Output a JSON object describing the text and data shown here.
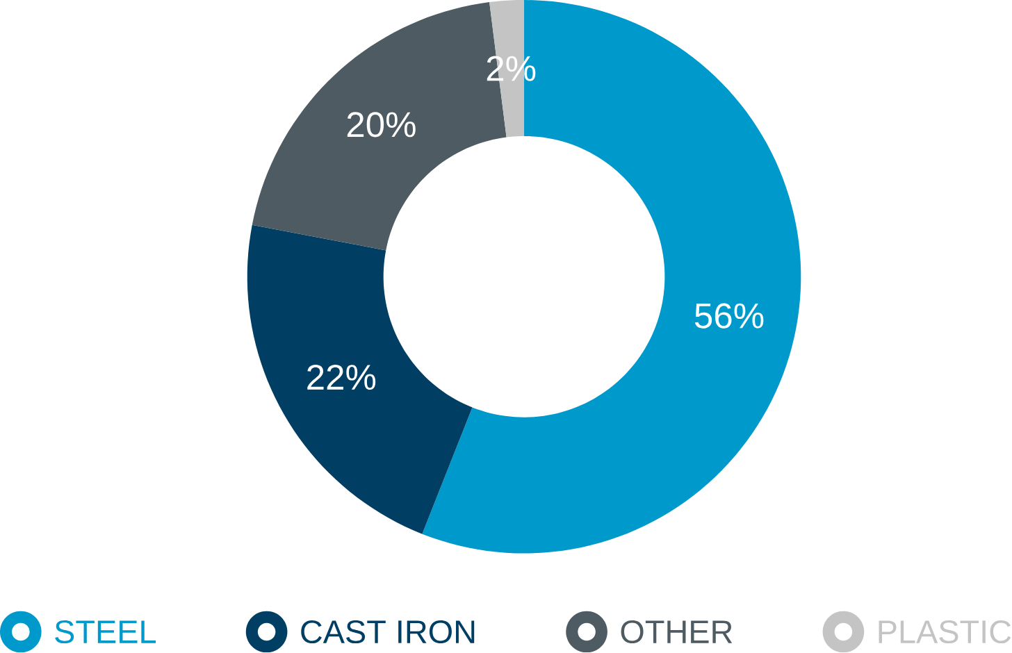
{
  "chart_data": {
    "type": "donut",
    "categories": [
      "STEEL",
      "CAST IRON",
      "OTHER",
      "PLASTIC"
    ],
    "values": [
      56,
      22,
      20,
      2
    ],
    "value_labels": [
      "56%",
      "22%",
      "20%",
      "2%"
    ],
    "colors": [
      "#0099cc",
      "#003f63",
      "#4f5b62",
      "#c4c4c4"
    ],
    "legend": "bottom"
  }
}
